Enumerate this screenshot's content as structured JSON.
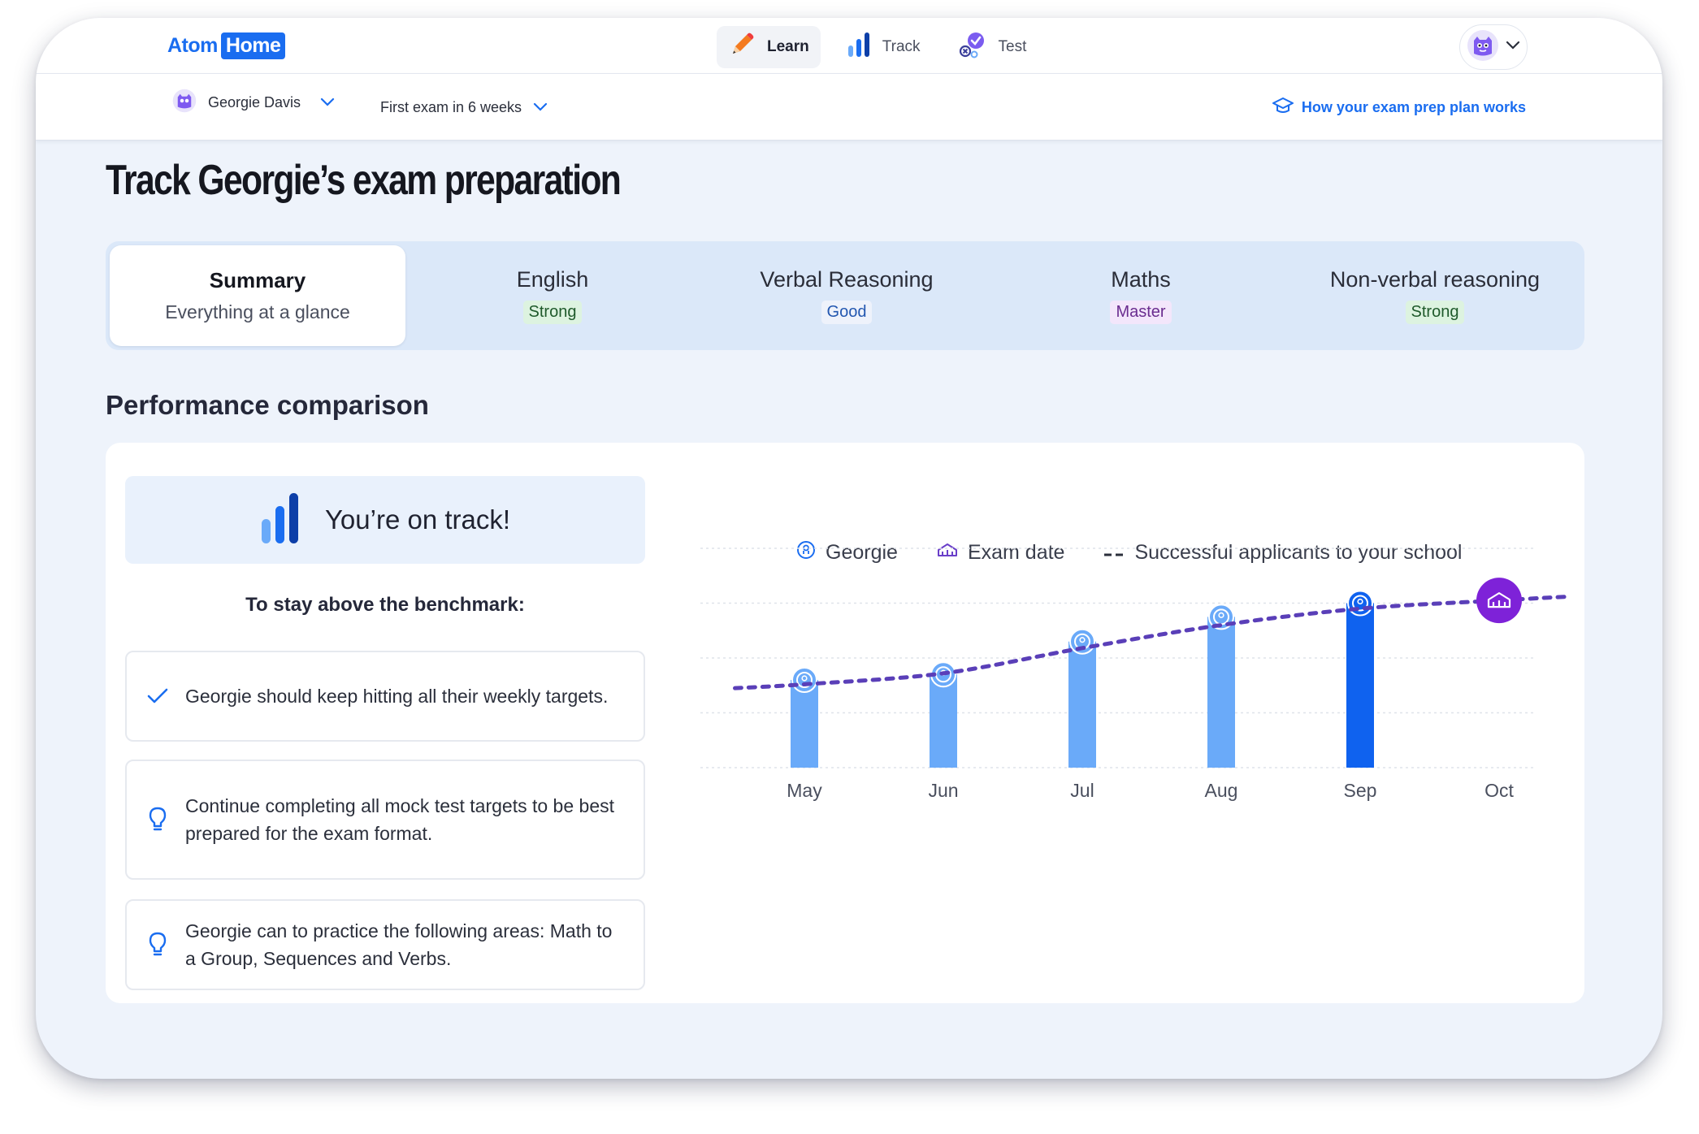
{
  "header": {
    "logo_atom": "Atom",
    "logo_home": "Home",
    "nav": [
      {
        "label": "Learn",
        "icon": "pencil-icon",
        "active": true
      },
      {
        "label": "Track",
        "icon": "bar-chart-icon",
        "active": false
      },
      {
        "label": "Test",
        "icon": "test-check-icon",
        "active": false
      }
    ]
  },
  "subbar": {
    "student_name": "Georgie Davis",
    "exam_label": "First exam in 6 weeks",
    "help_link": "How your exam prep plan works"
  },
  "page": {
    "title": "Track Georgie’s exam preparation"
  },
  "tabs": {
    "summary": {
      "name": "Summary",
      "sub": "Everything at a glance"
    },
    "subjects": [
      {
        "name": "English",
        "badge": "Strong"
      },
      {
        "name": "Verbal Reasoning",
        "badge": "Good"
      },
      {
        "name": "Maths",
        "badge": "Master"
      },
      {
        "name": "Non-verbal reasoning",
        "badge": "Strong"
      }
    ]
  },
  "performance": {
    "section_title": "Performance comparison",
    "status": "You’re on track!",
    "benchmark_heading": "To stay above the benchmark:",
    "tips": [
      "Georgie should keep hitting all their weekly targets.",
      "Continue completing all mock test targets to be best prepared for the exam format.",
      "Georgie can to practice the following areas: Math to a Group, Sequences and Verbs."
    ]
  },
  "colors": {
    "brand_blue": "#1a6df0",
    "bar_light": "#6aaaf9",
    "bar_current": "#0f62ef",
    "benchmark_purple": "#5a3fb8",
    "exam_marker": "#7e22d8"
  },
  "chart_data": {
    "type": "bar",
    "legend": [
      "Georgie",
      "Exam date",
      "Successful applicants to your school"
    ],
    "legend_position": "top",
    "categories": [
      "May",
      "Jun",
      "Jul",
      "Aug",
      "Sep",
      "Oct"
    ],
    "series": [
      {
        "name": "Georgie",
        "values": [
          1.6,
          1.7,
          2.3,
          2.75,
          3.0,
          null
        ],
        "current_index": 4
      },
      {
        "name": "Successful applicants to your school",
        "style": "dashed",
        "x": [
          -0.5,
          0,
          1,
          2,
          3,
          4,
          5,
          5.5
        ],
        "values": [
          1.45,
          1.52,
          1.72,
          2.18,
          2.6,
          2.9,
          3.05,
          3.12
        ]
      }
    ],
    "exam_date_index": 5,
    "ylim": [
      0,
      4
    ],
    "grid": true,
    "axis_labels_shown": false
  }
}
